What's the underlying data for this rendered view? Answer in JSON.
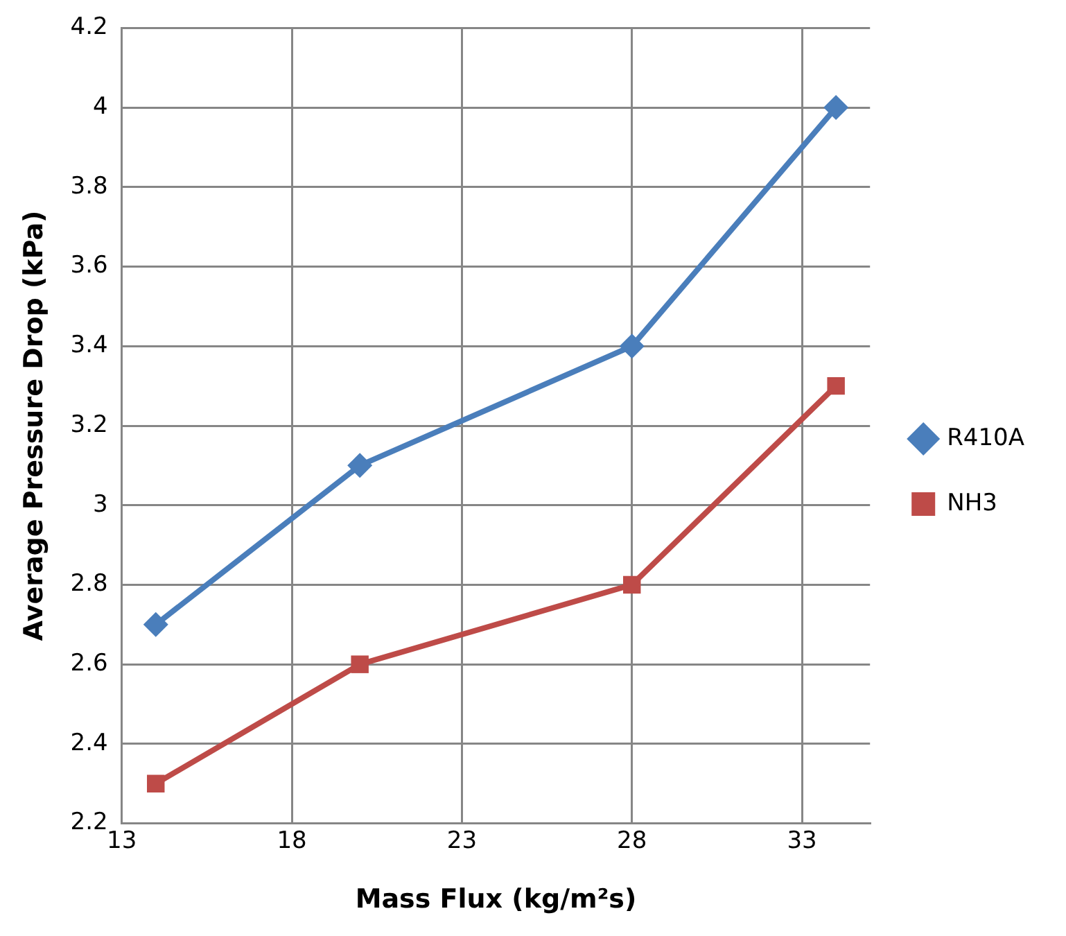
{
  "chart_data": {
    "type": "line",
    "xlabel": "Mass Flux (kg/m²s)",
    "ylabel": "Average Pressure Drop (kPa)",
    "x": [
      14,
      20,
      28,
      34
    ],
    "series": [
      {
        "name": "R410A",
        "color": "#4a7ebb",
        "marker": "diamond",
        "values": [
          2.7,
          3.1,
          3.4,
          4.0
        ]
      },
      {
        "name": "NH3",
        "color": "#be4b48",
        "marker": "square",
        "values": [
          2.3,
          2.6,
          2.8,
          3.3
        ]
      }
    ],
    "xlim": [
      13,
      35
    ],
    "xticks": [
      13,
      18,
      23,
      28,
      33
    ],
    "ylim": [
      2.2,
      4.2
    ],
    "yticks": [
      2.2,
      2.4,
      2.6,
      2.8,
      3,
      3.2,
      3.4,
      3.6,
      3.8,
      4,
      4.2
    ],
    "grid": true,
    "legend": "right",
    "line_style": "solid"
  }
}
